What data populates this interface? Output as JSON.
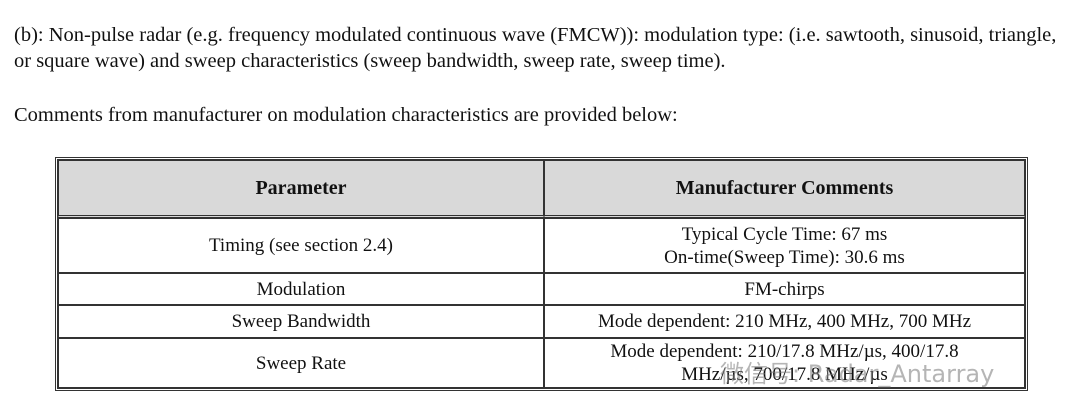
{
  "paragraphs": [
    "(b):  Non-pulse radar (e.g. frequency modulated continuous wave (FMCW)):  modulation type: (i.e. sawtooth, sinusoid, triangle, or square wave) and sweep characteristics (sweep bandwidth, sweep rate, sweep time).",
    "Comments from manufacturer on modulation characteristics are provided below:"
  ],
  "table": {
    "header": [
      "Parameter",
      "Manufacturer Comments"
    ],
    "rows": [
      {
        "parameter": "Timing (see section 2.4)",
        "comments": [
          "Typical Cycle Time: 67 ms",
          "On-time(Sweep Time): 30.6 ms"
        ]
      },
      {
        "parameter": "Modulation",
        "comments": [
          "FM-chirps"
        ]
      },
      {
        "parameter": "Sweep Bandwidth",
        "comments": [
          "Mode dependent: 210 MHz, 400 MHz, 700 MHz"
        ]
      },
      {
        "parameter": "Sweep Rate",
        "comments": [
          "Mode dependent: 210/17.8 MHz/µs, 400/17.8",
          "MHz/µs, 700/17.8 MHz/µs"
        ]
      }
    ]
  },
  "watermark": "微信号: Radar_Antarray"
}
